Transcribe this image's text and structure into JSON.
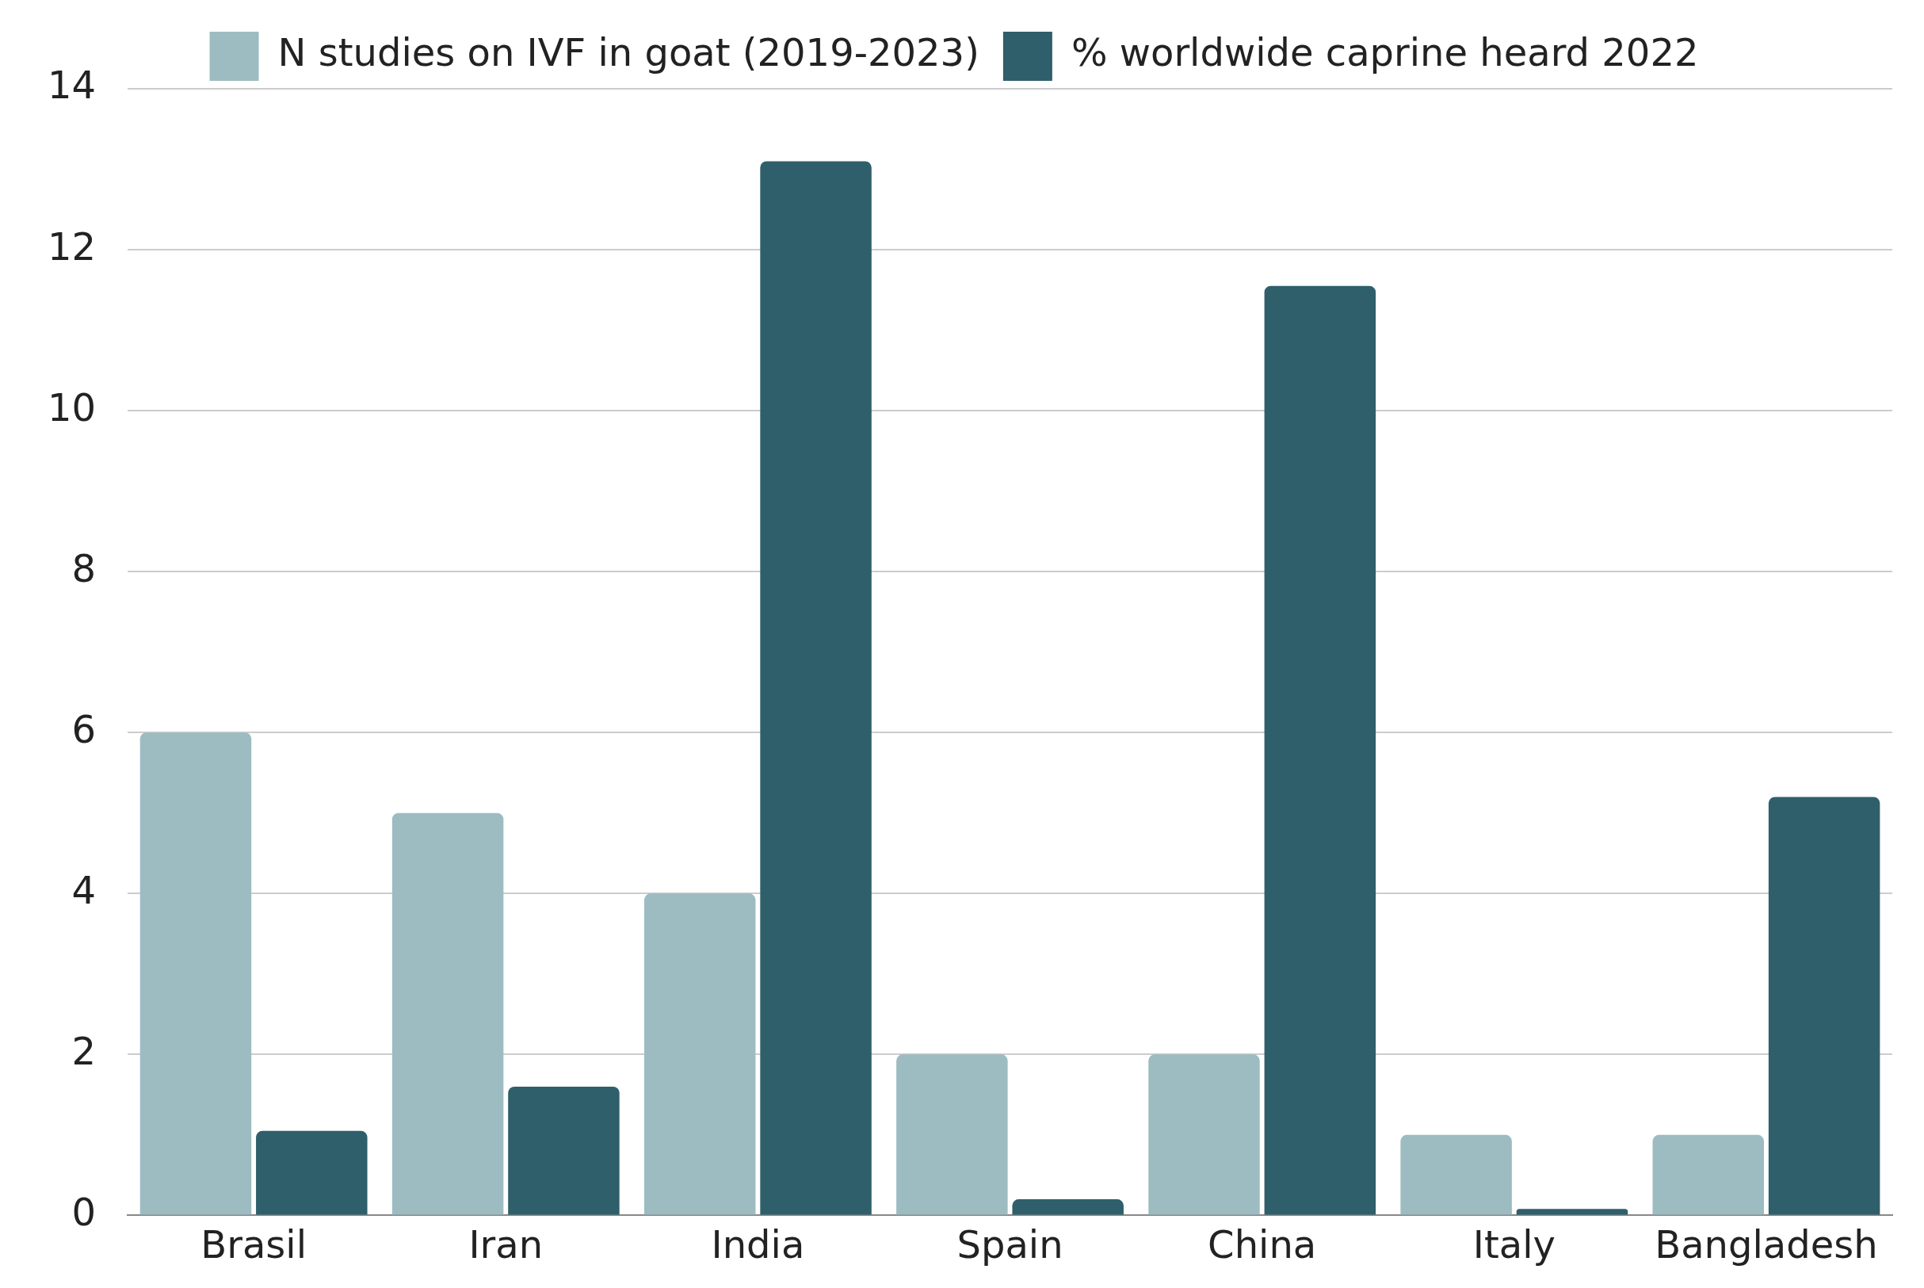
{
  "chart_data": {
    "type": "bar",
    "categories": [
      "Brasil",
      "Iran",
      "India",
      "Spain",
      "China",
      "Italy",
      "Bangladesh"
    ],
    "series": [
      {
        "name": "N studies on IVF in goat (2019-2023)",
        "color": "#9dbcc2",
        "values": [
          6,
          5,
          4,
          2,
          2,
          1,
          1
        ]
      },
      {
        "name": "% worldwide caprine heard 2022",
        "color": "#2f5f6a",
        "values": [
          1.05,
          1.6,
          13.1,
          0.2,
          11.55,
          0.08,
          5.2
        ]
      }
    ],
    "ylim": [
      0,
      14
    ],
    "yticks": [
      0,
      2,
      4,
      6,
      8,
      10,
      12,
      14
    ],
    "grid": "y",
    "legend": "top"
  }
}
